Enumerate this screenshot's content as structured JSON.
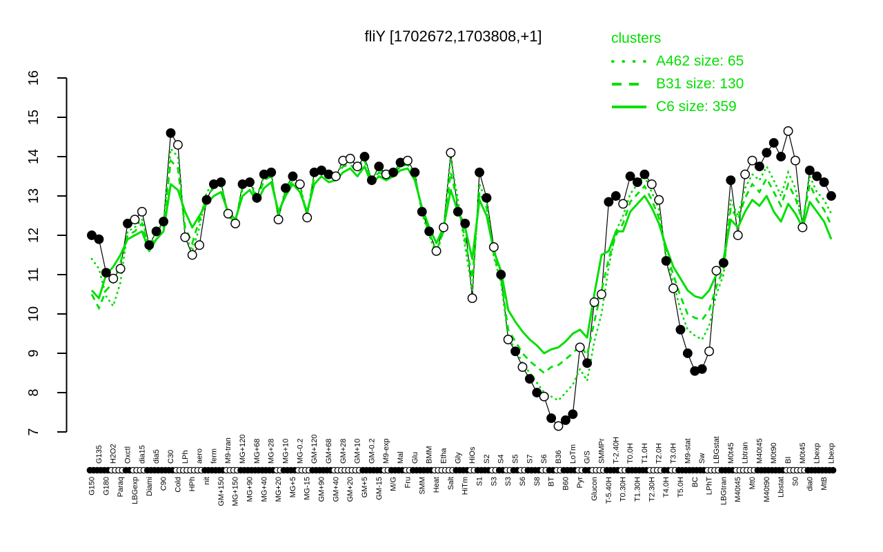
{
  "title": "fliY [1702672,1703808,+1]",
  "colors": {
    "cluster_green": "#00DF00",
    "profile_black": "#000000",
    "background": "#FFFFFF"
  },
  "legend": {
    "title": "clusters",
    "items": [
      {
        "id": "A462",
        "label": "A462 size: 65",
        "line_style": "dotted"
      },
      {
        "id": "B31",
        "label": "B31 size: 130",
        "line_style": "dashed"
      },
      {
        "id": "C6",
        "label": "C6 size: 359",
        "line_style": "solid"
      }
    ]
  },
  "chart_data": {
    "type": "line",
    "title": "fliY [1702672,1703808,+1]",
    "xlabel": "",
    "ylabel": "",
    "ylim": [
      7,
      16
    ],
    "yticks": [
      7,
      8,
      9,
      10,
      11,
      12,
      13,
      14,
      15,
      16
    ],
    "grid": false,
    "legend_position": "top-right",
    "x_label_rows": "alternating-bottom-first",
    "x_categories": [
      "G150",
      "G135",
      "G180",
      "H2O2",
      "Paraq",
      "Oxctl",
      "LBGexp",
      "dia15",
      "Diami",
      "dia5",
      "C90",
      "C30",
      "Cold",
      "LPh",
      "HPh",
      "aero",
      "nit",
      "ferm",
      "GM+150",
      "M9-tran",
      "MG+150",
      "MG+120",
      "MG+90",
      "MG+68",
      "MG+40",
      "MG+28",
      "MG+20",
      "MG+10",
      "MG+5",
      "MG-0.2",
      "MG-15",
      "GM+120",
      "GM+90",
      "GM+68",
      "GM+40",
      "GM+28",
      "GM+20",
      "GM+10",
      "GM+5",
      "GM-0.2",
      "GM-15",
      "M9-exp",
      "M/G",
      "Mal",
      "Fru",
      "Glu",
      "SMM",
      "BMM",
      "Heat",
      "Etha",
      "Salt",
      "Gly",
      "HiTm",
      "HiOs",
      "S1",
      "S2",
      "S3",
      "S4",
      "S3",
      "S5",
      "S6",
      "S7",
      "S8",
      "S6",
      "BT",
      "B36",
      "B60",
      "LoTm",
      "Pyr",
      "G/S",
      "Glucon",
      "SMMPr",
      "T-5.40H",
      "T-2.40H",
      "T0.30H",
      "T0.0H",
      "T1.30H",
      "T1.0H",
      "T2.30H",
      "T2.0H",
      "T4.0H",
      "T3.0H",
      "T5.0H",
      "M9-stat",
      "BC",
      "Sw",
      "LPhT",
      "LBGstat",
      "LBGtran",
      "M0t45",
      "M40t45",
      "Lbtran",
      "Mt0",
      "M40t45",
      "M40t90",
      "M0t90",
      "Lbstat",
      "BI",
      "S0",
      "M0t45",
      "dia0",
      "Lbexp",
      "MtB",
      "Lbexp"
    ],
    "series": [
      {
        "name": "fliY",
        "role": "gene-profile",
        "style": "solid-thin-with-points",
        "color": "#000000",
        "values": [
          12.0,
          11.9,
          11.05,
          10.9,
          11.15,
          12.3,
          12.4,
          12.6,
          11.75,
          12.1,
          12.35,
          14.6,
          14.3,
          11.95,
          11.5,
          11.75,
          12.9,
          13.3,
          13.35,
          12.55,
          12.3,
          13.3,
          13.35,
          12.95,
          13.55,
          13.6,
          12.4,
          13.2,
          13.5,
          13.3,
          12.45,
          13.6,
          13.65,
          13.55,
          13.5,
          13.9,
          13.95,
          13.75,
          14.0,
          13.4,
          13.75,
          13.55,
          13.6,
          13.85,
          13.9,
          13.6,
          12.6,
          12.1,
          11.6,
          12.2,
          14.1,
          12.6,
          12.3,
          10.4,
          13.6,
          12.95,
          11.7,
          11.0,
          9.35,
          9.05,
          8.65,
          8.35,
          8.0,
          7.9,
          7.35,
          7.15,
          7.3,
          7.45,
          9.15,
          8.75,
          10.3,
          10.5,
          12.85,
          13.0,
          12.8,
          13.5,
          13.35,
          13.55,
          13.3,
          12.9,
          11.35,
          10.65,
          9.6,
          9.0,
          8.55,
          8.6,
          9.05,
          11.1,
          11.3,
          13.4,
          12.0,
          13.55,
          13.9,
          13.75,
          14.1,
          14.35,
          14.0,
          14.65,
          13.9,
          12.2,
          13.65,
          13.5,
          13.35,
          13.0
        ],
        "point_filled": [
          1,
          1,
          1,
          0,
          0,
          1,
          0,
          0,
          1,
          1,
          1,
          1,
          0,
          0,
          0,
          0,
          1,
          1,
          1,
          0,
          0,
          1,
          1,
          1,
          1,
          1,
          0,
          1,
          1,
          0,
          0,
          1,
          1,
          1,
          0,
          0,
          0,
          0,
          1,
          1,
          1,
          0,
          1,
          1,
          0,
          1,
          1,
          1,
          0,
          0,
          0,
          1,
          1,
          0,
          1,
          1,
          0,
          1,
          0,
          1,
          0,
          1,
          1,
          0,
          1,
          0,
          1,
          1,
          0,
          1,
          0,
          0,
          1,
          1,
          0,
          1,
          1,
          1,
          0,
          0,
          1,
          0,
          1,
          1,
          1,
          1,
          0,
          0,
          1,
          1,
          0,
          0,
          0,
          1,
          1,
          1,
          1,
          0,
          0,
          0,
          1,
          1,
          1,
          1
        ]
      },
      {
        "name": "A462",
        "role": "cluster-mean",
        "style": "dotted",
        "color": "#00DF00",
        "values": [
          11.4,
          11.15,
          10.45,
          10.2,
          10.8,
          12.1,
          12.2,
          12.4,
          11.7,
          12.1,
          12.3,
          14.2,
          14.0,
          12.0,
          11.6,
          12.2,
          13.1,
          13.3,
          13.35,
          12.5,
          12.3,
          13.3,
          13.4,
          13.0,
          13.5,
          13.55,
          12.45,
          13.2,
          13.5,
          13.3,
          12.5,
          13.6,
          13.65,
          13.5,
          13.5,
          13.85,
          13.9,
          13.7,
          13.95,
          13.4,
          13.7,
          13.5,
          13.6,
          13.8,
          13.85,
          13.55,
          12.55,
          12.0,
          11.5,
          12.15,
          13.95,
          12.9,
          11.7,
          10.6,
          13.3,
          12.85,
          11.45,
          10.8,
          9.4,
          9.1,
          8.75,
          8.5,
          8.25,
          8.0,
          7.9,
          7.8,
          8.0,
          8.2,
          8.6,
          8.3,
          9.3,
          10.0,
          11.2,
          12.1,
          12.5,
          13.05,
          13.3,
          13.5,
          13.1,
          12.65,
          11.45,
          10.8,
          10.1,
          9.6,
          9.45,
          9.35,
          9.7,
          10.5,
          11.0,
          12.9,
          12.5,
          13.2,
          13.55,
          13.4,
          13.75,
          13.4,
          13.0,
          13.6,
          13.2,
          12.3,
          13.5,
          13.1,
          12.9,
          12.55
        ]
      },
      {
        "name": "B31",
        "role": "cluster-mean",
        "style": "dashed",
        "color": "#00DF00",
        "values": [
          10.5,
          10.15,
          10.6,
          10.8,
          11.3,
          12.0,
          12.1,
          12.3,
          11.65,
          12.0,
          12.2,
          13.9,
          13.7,
          12.2,
          11.8,
          12.4,
          13.0,
          13.2,
          13.3,
          12.5,
          12.3,
          13.2,
          13.35,
          12.9,
          13.4,
          13.5,
          12.5,
          13.1,
          13.4,
          13.2,
          12.5,
          13.5,
          13.6,
          13.45,
          13.5,
          13.75,
          13.8,
          13.6,
          13.9,
          13.35,
          13.6,
          13.5,
          13.55,
          13.75,
          13.8,
          13.5,
          12.6,
          12.05,
          11.6,
          12.1,
          13.6,
          12.8,
          11.9,
          10.9,
          13.1,
          12.7,
          11.5,
          10.9,
          9.6,
          9.3,
          9.0,
          8.8,
          8.65,
          8.5,
          8.65,
          8.7,
          8.85,
          9.0,
          9.2,
          8.95,
          9.8,
          10.6,
          11.4,
          12.0,
          12.3,
          12.85,
          13.05,
          13.25,
          12.9,
          12.45,
          11.55,
          11.0,
          10.45,
          10.0,
          9.9,
          9.85,
          10.1,
          10.7,
          11.15,
          12.7,
          12.4,
          12.95,
          13.3,
          13.1,
          13.45,
          13.1,
          12.75,
          13.3,
          12.95,
          12.35,
          13.3,
          12.9,
          12.65,
          12.25
        ]
      },
      {
        "name": "C6",
        "role": "cluster-mean",
        "style": "solid",
        "color": "#00DF00",
        "values": [
          10.6,
          10.4,
          11.0,
          11.2,
          11.5,
          11.9,
          12.0,
          12.1,
          11.6,
          11.9,
          12.1,
          13.3,
          13.15,
          12.6,
          12.2,
          12.5,
          12.8,
          13.0,
          13.1,
          12.6,
          12.4,
          13.0,
          13.15,
          12.85,
          13.2,
          13.35,
          12.6,
          13.0,
          13.3,
          13.1,
          12.6,
          13.3,
          13.5,
          13.35,
          13.4,
          13.6,
          13.7,
          13.5,
          13.75,
          13.3,
          13.5,
          13.4,
          13.5,
          13.65,
          13.7,
          13.4,
          12.7,
          12.2,
          11.8,
          12.2,
          13.15,
          12.6,
          12.2,
          11.4,
          12.9,
          12.5,
          11.6,
          11.1,
          10.1,
          9.8,
          9.55,
          9.35,
          9.2,
          9.0,
          9.1,
          9.15,
          9.3,
          9.5,
          9.6,
          9.4,
          10.5,
          11.5,
          11.6,
          12.1,
          12.1,
          12.6,
          12.8,
          13.0,
          12.7,
          12.3,
          11.7,
          11.2,
          10.9,
          10.6,
          10.45,
          10.4,
          10.6,
          11.0,
          11.4,
          12.4,
          12.2,
          12.6,
          12.9,
          12.75,
          13.0,
          12.6,
          12.35,
          12.8,
          12.55,
          12.2,
          12.85,
          12.6,
          12.35,
          11.9
        ]
      }
    ]
  }
}
